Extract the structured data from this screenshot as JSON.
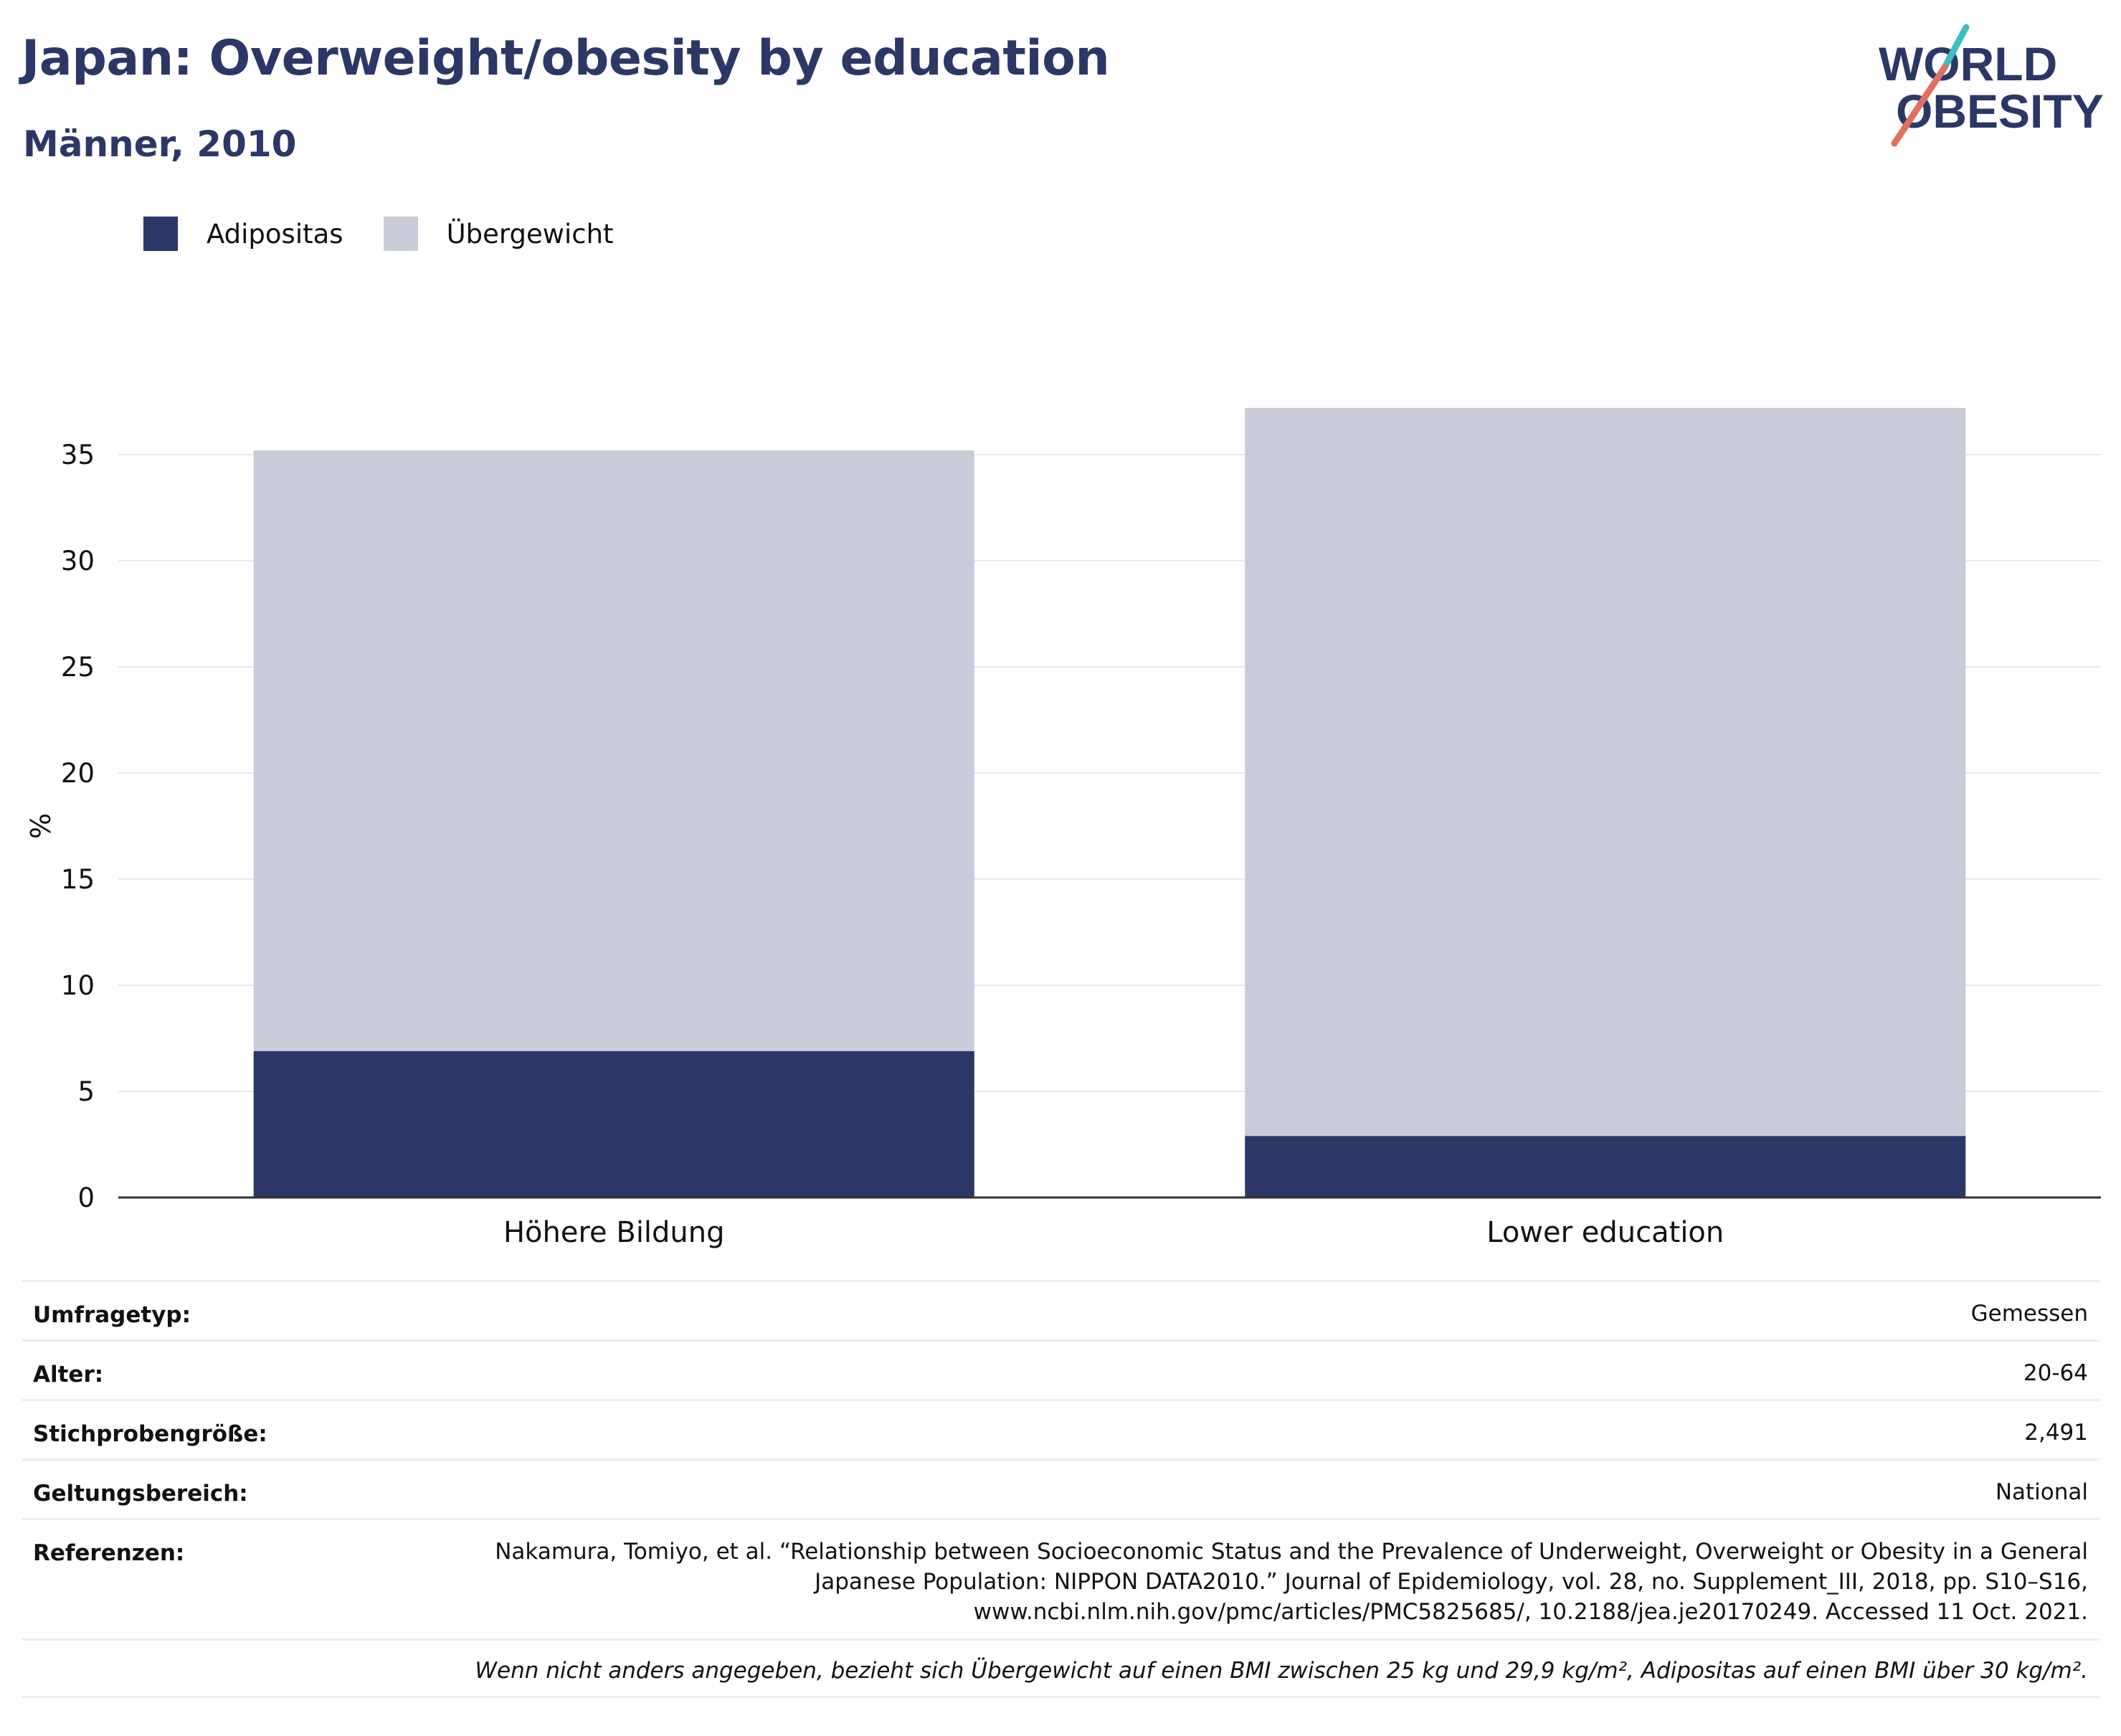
{
  "header": {
    "title": "Japan: Overweight/obesity by education",
    "subtitle": "Männer, 2010"
  },
  "logo": {
    "line1": "WORLD",
    "line2": "OBESITY"
  },
  "colors": {
    "brand": "#2b3766",
    "obesity": "#2b3766",
    "overweight": "#c9ccd8",
    "logo_slash_teal": "#3bbfbf",
    "logo_slash_red": "#e07060"
  },
  "legend": [
    {
      "label": "Adipositas",
      "color": "#2b3766"
    },
    {
      "label": "Übergewicht",
      "color": "#c9ccd8"
    }
  ],
  "chart_data": {
    "type": "bar",
    "stacked": true,
    "categories": [
      "Höhere Bildung",
      "Lower education"
    ],
    "series": [
      {
        "name": "Adipositas",
        "values": [
          6.9,
          2.9
        ]
      },
      {
        "name": "Übergewicht",
        "values": [
          28.3,
          34.3
        ]
      }
    ],
    "ylabel": "%",
    "ylim": [
      0,
      37.5
    ],
    "yticks": [
      0,
      5,
      10,
      15,
      20,
      25,
      30,
      35
    ],
    "grid": true
  },
  "info": {
    "rows": [
      {
        "key": "Umfragetyp:",
        "value": "Gemessen"
      },
      {
        "key": "Alter:",
        "value": "20-64"
      },
      {
        "key": "Stichprobengröße:",
        "value": "2,491"
      },
      {
        "key": "Geltungsbereich:",
        "value": "National"
      }
    ],
    "references_key": "Referenzen:",
    "references_value": "Nakamura, Tomiyo, et al. “Relationship between Socioeconomic Status and the Prevalence of Underweight, Overweight or Obesity in a General Japanese Population: NIPPON DATA2010.” Journal of Epidemiology, vol. 28, no. Supplement_III, 2018, pp. S10–S16, www.ncbi.nlm.nih.gov/pmc/articles/PMC5825685/, 10.2188/jea.je20170249. Accessed 11 Oct. 2021.",
    "note": "Wenn nicht anders angegeben, bezieht sich Übergewicht auf einen BMI zwischen 25 kg und 29,9 kg/m², Adipositas auf einen BMI über 30 kg/m²."
  }
}
